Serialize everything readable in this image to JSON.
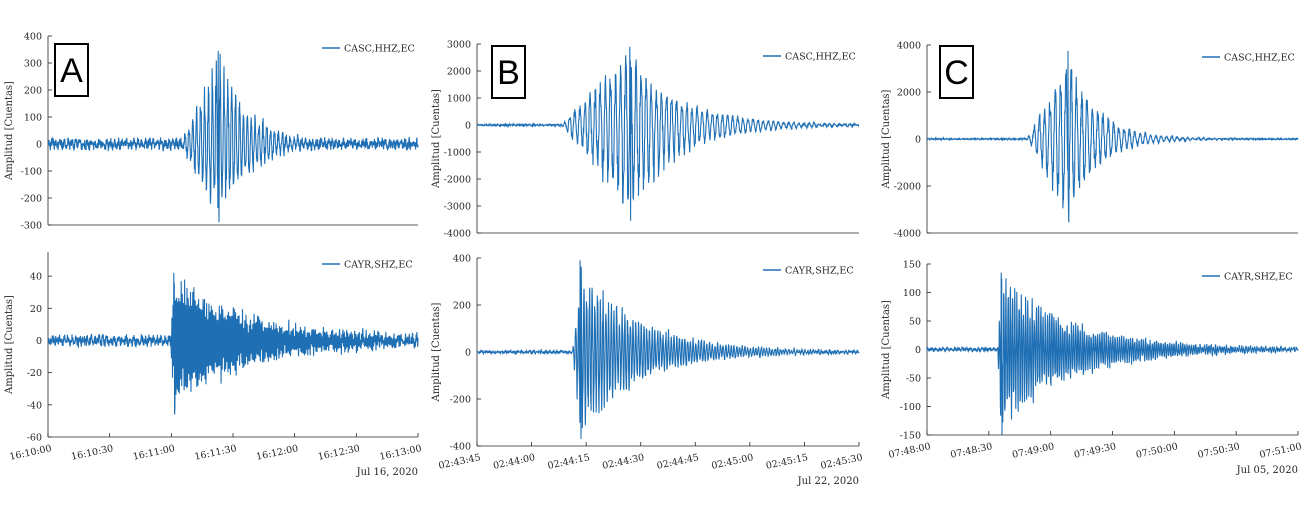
{
  "colors": {
    "line": "#1f6fb5",
    "axis": "#262626",
    "frame": "#000000"
  },
  "ylabel": "Amplitud [Cuentas]",
  "chart_data": [
    {
      "type": "line",
      "panel": "A",
      "row": "top",
      "legend": "CASC,HHZ,EC",
      "ylim": [
        -300,
        400
      ],
      "yticks": [
        -300,
        -200,
        -100,
        0,
        100,
        200,
        300,
        400
      ],
      "ytick_labels": [
        "-300",
        "-200",
        "-100",
        "0",
        "100",
        "200",
        "300",
        "400"
      ],
      "signal": {
        "noise": 18,
        "onset": 0.36,
        "peak_pos": 0.46,
        "peak": 345,
        "trough": -290,
        "decay": 0.09,
        "freq": 95,
        "seed": 3
      }
    },
    {
      "type": "line",
      "panel": "A",
      "row": "bottom",
      "legend": "CAYR,SHZ,EC",
      "ylim": [
        -60,
        55
      ],
      "yticks": [
        -60,
        -40,
        -20,
        0,
        20,
        40
      ],
      "ytick_labels": [
        "-60",
        "-40",
        "-20",
        "0",
        "20",
        "40"
      ],
      "xticks": [
        "16:10:00",
        "16:10:30",
        "16:11:00",
        "16:11:30",
        "16:12:00",
        "16:12:30",
        "16:13:00"
      ],
      "date": "Jul 16, 2020",
      "signal": {
        "noise": 3,
        "onset": 0.33,
        "peak_pos": 0.34,
        "peak": 42,
        "trough": -46,
        "decay": 0.22,
        "freq": 320,
        "seed": 7
      }
    },
    {
      "type": "line",
      "panel": "B",
      "row": "top",
      "legend": "CASC,HHZ,EC",
      "ylim": [
        -4000,
        3000
      ],
      "yticks": [
        -4000,
        -3000,
        -2000,
        -1000,
        0,
        1000,
        2000,
        3000
      ],
      "ytick_labels": [
        "-4000",
        "-3000",
        "-2000",
        "-1000",
        "0",
        "1000",
        "2000",
        "3000"
      ],
      "signal": {
        "noise": 30,
        "onset": 0.22,
        "peak_pos": 0.4,
        "peak": 2900,
        "trough": -3550,
        "decay": 0.13,
        "freq": 75,
        "seed": 11
      }
    },
    {
      "type": "line",
      "panel": "B",
      "row": "bottom",
      "legend": "CAYR,SHZ,EC",
      "ylim": [
        -400,
        400
      ],
      "yticks": [
        -400,
        -200,
        0,
        200,
        400
      ],
      "ytick_labels": [
        "-400",
        "-200",
        "0",
        "200",
        "400"
      ],
      "xticks": [
        "02:43:45",
        "02:44:00",
        "02:44:15",
        "02:44:30",
        "02:44:45",
        "02:45:00",
        "02:45:15",
        "02:45:30"
      ],
      "date": "Jul 22, 2020",
      "signal": {
        "noise": 6,
        "onset": 0.25,
        "peak_pos": 0.27,
        "peak": 390,
        "trough": -370,
        "decay": 0.16,
        "freq": 140,
        "seed": 19
      }
    },
    {
      "type": "line",
      "panel": "C",
      "row": "top",
      "legend": "CASC,HHZ,EC",
      "ylim": [
        -4000,
        4000
      ],
      "yticks": [
        -4000,
        -2000,
        0,
        2000,
        4000
      ],
      "ytick_labels": [
        "-4000",
        "-2000",
        "0",
        "2000",
        "4000"
      ],
      "signal": {
        "noise": 25,
        "onset": 0.27,
        "peak_pos": 0.38,
        "peak": 3750,
        "trough": -3550,
        "decay": 0.08,
        "freq": 70,
        "seed": 23
      }
    },
    {
      "type": "line",
      "panel": "C",
      "row": "bottom",
      "legend": "CAYR,SHZ,EC",
      "ylim": [
        -150,
        150
      ],
      "yticks": [
        -150,
        -100,
        -50,
        0,
        50,
        100,
        150
      ],
      "ytick_labels": [
        "-150",
        "-100",
        "-50",
        "0",
        "50",
        "100",
        "150"
      ],
      "xticks": [
        "07:48:00",
        "07:48:30",
        "07:49:00",
        "07:49:30",
        "07:50:00",
        "07:50:30",
        "07:51:00"
      ],
      "date": "Jul 05, 2020",
      "signal": {
        "noise": 3,
        "onset": 0.19,
        "peak_pos": 0.2,
        "peak": 135,
        "trough": -150,
        "decay": 0.2,
        "freq": 170,
        "seed": 31
      }
    }
  ],
  "panels": [
    {
      "letter": "A"
    },
    {
      "letter": "B"
    },
    {
      "letter": "C"
    }
  ]
}
